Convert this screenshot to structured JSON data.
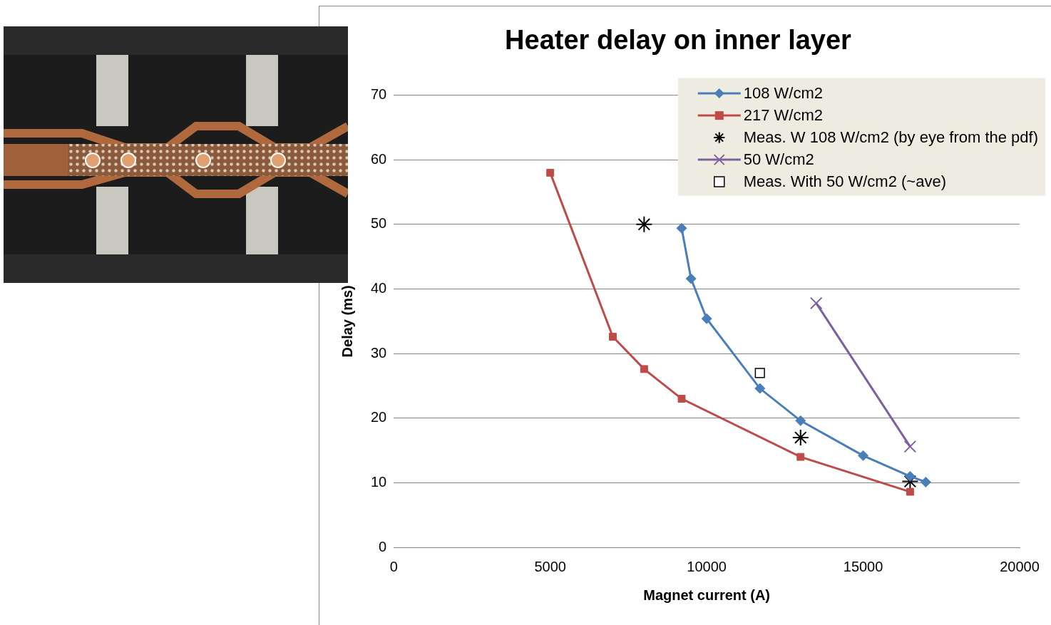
{
  "chart_data": {
    "type": "scatter",
    "title": "Heater delay on inner layer",
    "x_label": "Magnet current (A)",
    "y_label": "Delay (ms)",
    "xlim": [
      0,
      20000
    ],
    "xticks": [
      0,
      5000,
      10000,
      15000,
      20000
    ],
    "ylim": [
      0,
      70
    ],
    "yticks": [
      0,
      10,
      20,
      30,
      40,
      50,
      60,
      70
    ],
    "grid": "y",
    "legend": "upper right",
    "series": [
      {
        "name": "108 W/cm2",
        "color": "#4a7ebb",
        "marker": "diamond",
        "line_style": "solid",
        "x": [
          9200,
          9500,
          10000,
          11700,
          13000,
          15000,
          16500,
          17000
        ],
        "values": [
          49.4,
          41.6,
          35.4,
          24.6,
          19.6,
          14.2,
          11,
          10.1
        ]
      },
      {
        "name": "217 W/cm2",
        "color": "#be4b48",
        "marker": "square",
        "line_style": "solid",
        "x": [
          5000,
          7000,
          8000,
          9200,
          13000,
          16500
        ],
        "values": [
          58,
          32.6,
          27.6,
          23,
          14,
          8.6
        ]
      },
      {
        "name": "Meas. W 108 W/cm2 (by eye from the pdf)",
        "color": "#000000",
        "marker": "star",
        "line_style": "none",
        "x": [
          8000,
          13000,
          16500
        ],
        "values": [
          50,
          17,
          10.2
        ]
      },
      {
        "name": "50 W/cm2",
        "color": "#7d60a0",
        "marker": "x",
        "line_style": "solid",
        "x": [
          13500,
          16500
        ],
        "values": [
          37.8,
          15.6
        ]
      },
      {
        "name": "Meas. With 50 W/cm2 (~ave)",
        "color": "#000000",
        "marker": "open_square",
        "line_style": "none",
        "x": [
          11700
        ],
        "values": [
          27
        ]
      }
    ]
  }
}
